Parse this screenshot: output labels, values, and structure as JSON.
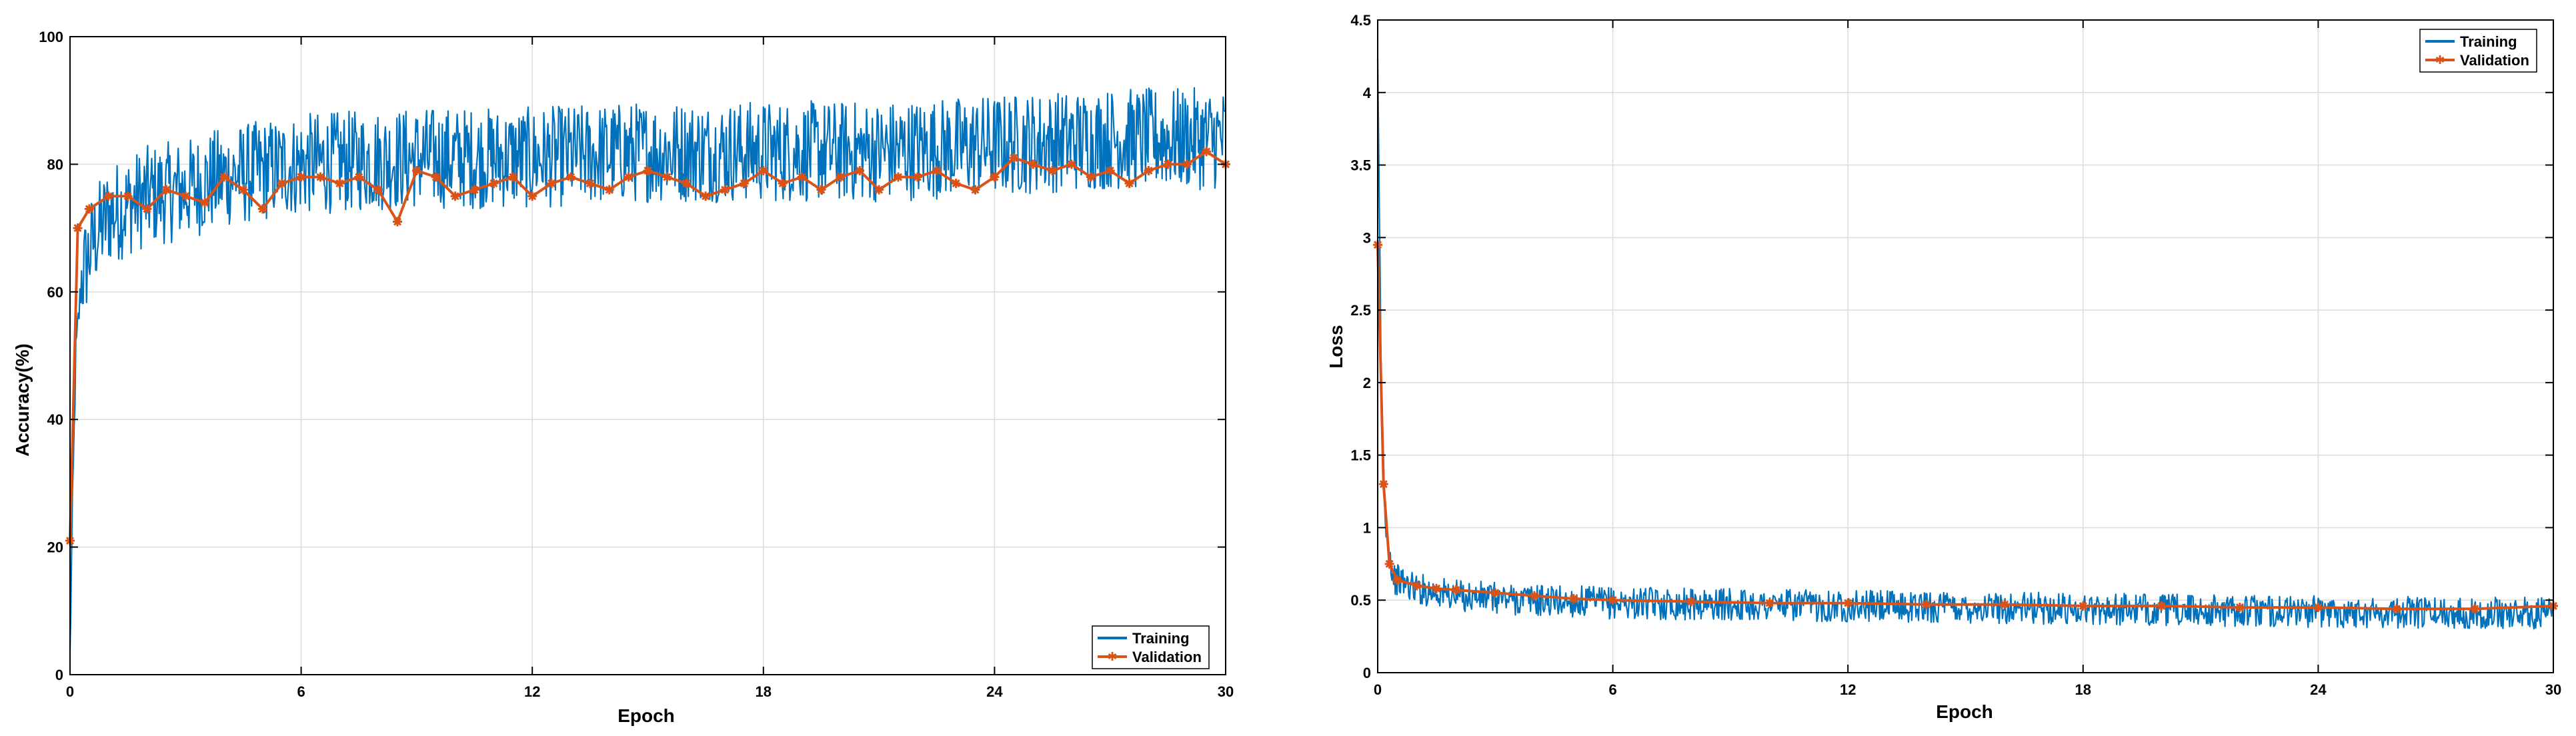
{
  "colors": {
    "training": "#0072BD",
    "validation": "#D95319",
    "grid": "#dcdcdc",
    "axis": "#000000"
  },
  "chart_data": [
    {
      "type": "line",
      "title": "",
      "xlabel": "Epoch",
      "ylabel": "Accuracy(%)",
      "xlim": [
        0,
        30
      ],
      "ylim": [
        0,
        100
      ],
      "xticks": [
        0,
        6,
        12,
        18,
        24,
        30
      ],
      "yticks": [
        0,
        20,
        40,
        60,
        80,
        100
      ],
      "grid": true,
      "legend_position": "bottom-right",
      "series": [
        {
          "name": "Training",
          "style": "noisy-line",
          "points": [
            [
              0,
              3
            ],
            [
              0.05,
              22
            ],
            [
              0.15,
              50
            ],
            [
              0.3,
              62
            ],
            [
              0.6,
              68
            ],
            [
              1,
              72
            ],
            [
              2,
              75
            ],
            [
              3,
              76
            ],
            [
              4,
              78
            ],
            [
              6,
              80
            ],
            [
              9,
              81
            ],
            [
              12,
              81
            ],
            [
              15,
              82
            ],
            [
              18,
              82
            ],
            [
              21,
              82
            ],
            [
              24,
              83
            ],
            [
              27,
              84
            ],
            [
              30,
              84
            ]
          ],
          "noise": 8
        },
        {
          "name": "Validation",
          "style": "line-markers",
          "points": [
            [
              0,
              21
            ],
            [
              0.2,
              70
            ],
            [
              0.5,
              73
            ],
            [
              1,
              75
            ],
            [
              1.5,
              75
            ],
            [
              2,
              73
            ],
            [
              2.5,
              76
            ],
            [
              3,
              75
            ],
            [
              3.5,
              74
            ],
            [
              4,
              78
            ],
            [
              4.5,
              76
            ],
            [
              5,
              73
            ],
            [
              5.5,
              77
            ],
            [
              6,
              78
            ],
            [
              6.5,
              78
            ],
            [
              7,
              77
            ],
            [
              7.5,
              78
            ],
            [
              8,
              76
            ],
            [
              8.5,
              71
            ],
            [
              9,
              79
            ],
            [
              9.5,
              78
            ],
            [
              10,
              75
            ],
            [
              10.5,
              76
            ],
            [
              11,
              77
            ],
            [
              11.5,
              78
            ],
            [
              12,
              75
            ],
            [
              12.5,
              77
            ],
            [
              13,
              78
            ],
            [
              13.5,
              77
            ],
            [
              14,
              76
            ],
            [
              14.5,
              78
            ],
            [
              15,
              79
            ],
            [
              15.5,
              78
            ],
            [
              16,
              77
            ],
            [
              16.5,
              75
            ],
            [
              17,
              76
            ],
            [
              17.5,
              77
            ],
            [
              18,
              79
            ],
            [
              18.5,
              77
            ],
            [
              19,
              78
            ],
            [
              19.5,
              76
            ],
            [
              20,
              78
            ],
            [
              20.5,
              79
            ],
            [
              21,
              76
            ],
            [
              21.5,
              78
            ],
            [
              22,
              78
            ],
            [
              22.5,
              79
            ],
            [
              23,
              77
            ],
            [
              23.5,
              76
            ],
            [
              24,
              78
            ],
            [
              24.5,
              81
            ],
            [
              25,
              80
            ],
            [
              25.5,
              79
            ],
            [
              26,
              80
            ],
            [
              26.5,
              78
            ],
            [
              27,
              79
            ],
            [
              27.5,
              77
            ],
            [
              28,
              79
            ],
            [
              28.5,
              80
            ],
            [
              29,
              80
            ],
            [
              29.5,
              82
            ],
            [
              30,
              80
            ]
          ]
        }
      ]
    },
    {
      "type": "line",
      "title": "",
      "xlabel": "Epoch",
      "ylabel": "Loss",
      "xlim": [
        0,
        30
      ],
      "ylim": [
        0,
        4.5
      ],
      "xticks": [
        0,
        6,
        12,
        18,
        24,
        30
      ],
      "yticks": [
        0,
        0.5,
        1,
        1.5,
        2,
        2.5,
        3,
        3.5,
        4,
        4.5
      ],
      "grid": true,
      "legend_position": "top-right",
      "series": [
        {
          "name": "Training",
          "style": "noisy-line",
          "points": [
            [
              0,
              4.2
            ],
            [
              0.05,
              3.0
            ],
            [
              0.1,
              1.8
            ],
            [
              0.2,
              1.0
            ],
            [
              0.4,
              0.65
            ],
            [
              1,
              0.58
            ],
            [
              2,
              0.53
            ],
            [
              4,
              0.5
            ],
            [
              6,
              0.48
            ],
            [
              12,
              0.46
            ],
            [
              18,
              0.44
            ],
            [
              24,
              0.42
            ],
            [
              30,
              0.41
            ]
          ],
          "noise": 0.11
        },
        {
          "name": "Validation",
          "style": "line-markers",
          "points": [
            [
              0,
              2.95
            ],
            [
              0.15,
              1.3
            ],
            [
              0.3,
              0.75
            ],
            [
              0.5,
              0.64
            ],
            [
              1,
              0.6
            ],
            [
              1.5,
              0.58
            ],
            [
              2,
              0.57
            ],
            [
              3,
              0.55
            ],
            [
              4,
              0.53
            ],
            [
              5,
              0.51
            ],
            [
              6,
              0.5
            ],
            [
              8,
              0.49
            ],
            [
              10,
              0.48
            ],
            [
              12,
              0.48
            ],
            [
              14,
              0.47
            ],
            [
              16,
              0.47
            ],
            [
              18,
              0.46
            ],
            [
              20,
              0.46
            ],
            [
              22,
              0.45
            ],
            [
              24,
              0.45
            ],
            [
              26,
              0.44
            ],
            [
              28,
              0.44
            ],
            [
              30,
              0.46
            ]
          ]
        }
      ]
    }
  ]
}
